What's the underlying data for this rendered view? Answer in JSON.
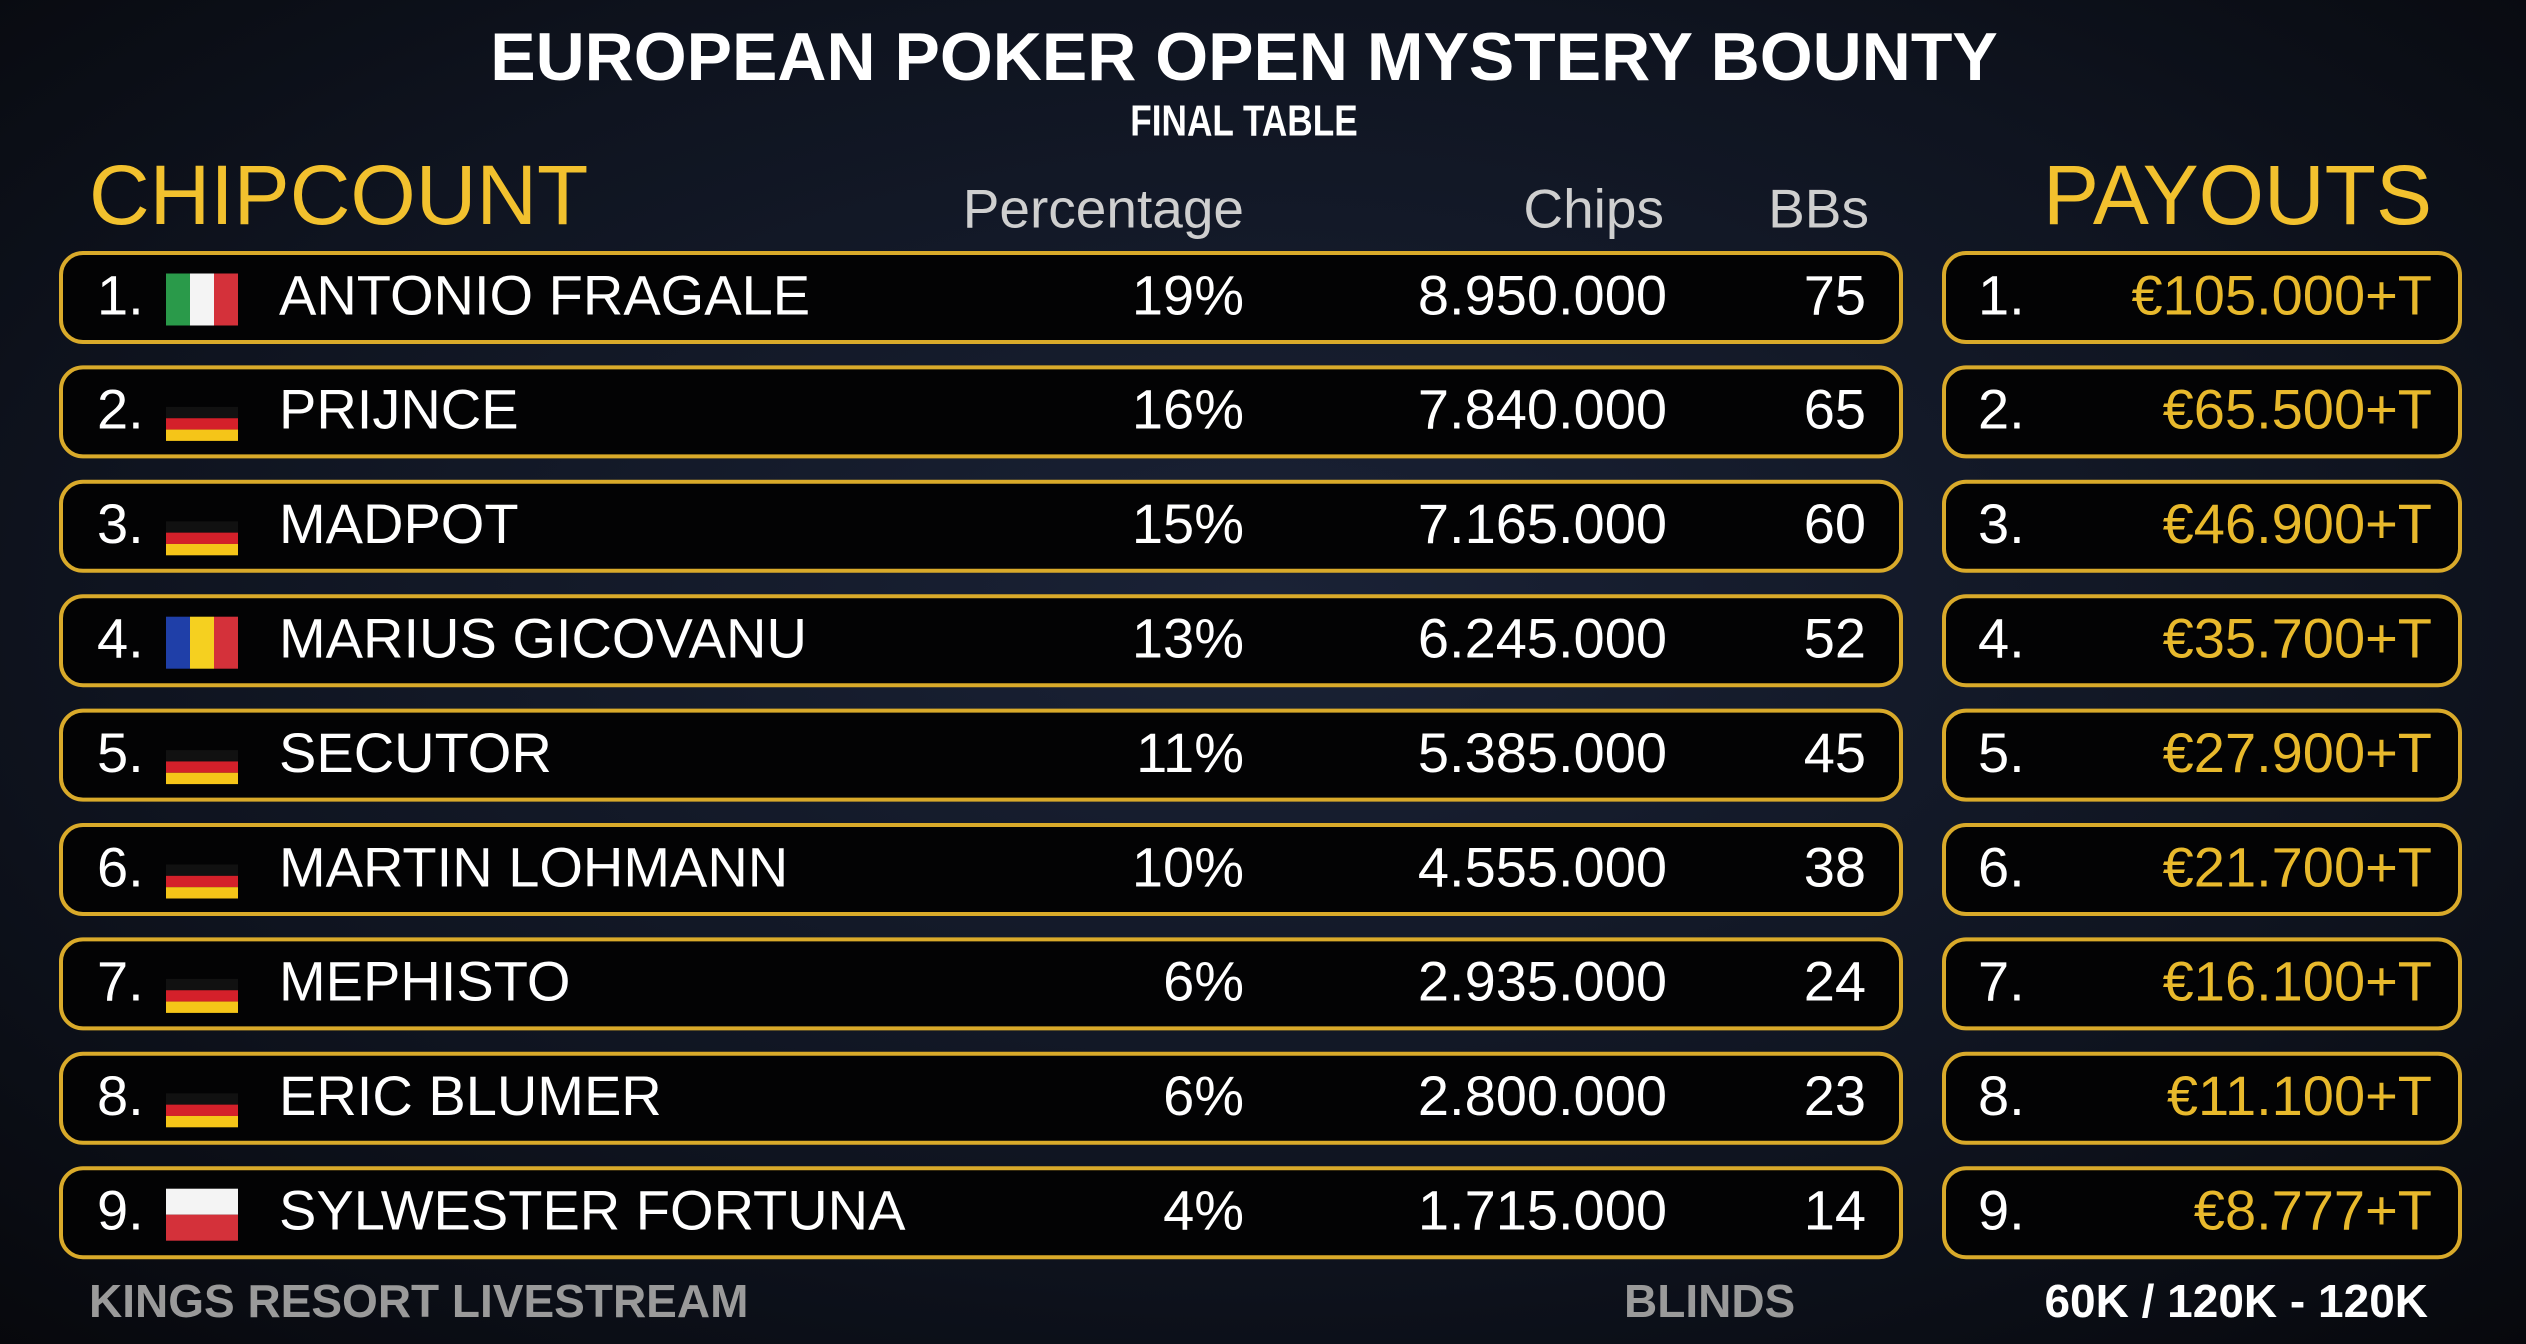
{
  "header": {
    "title": "EUROPEAN POKER OPEN MYSTERY BOUNTY",
    "subtitle": "FINAL TABLE"
  },
  "chipcount": {
    "title": "CHIPCOUNT",
    "columns": {
      "percentage": "Percentage",
      "chips": "Chips",
      "bbs": "BBs"
    },
    "rows": [
      {
        "rank": "1.",
        "name": "ANTONIO FRAGALE",
        "percentage": "19%",
        "chips": "8.950.000",
        "bbs": 75
      },
      {
        "rank": "2.",
        "name": "PRIJNCE",
        "percentage": "16%",
        "chips": "7.840.000",
        "bbs": 65
      },
      {
        "rank": "3.",
        "name": "MADPOT",
        "percentage": "15%",
        "chips": "7.165.000",
        "bbs": 60
      },
      {
        "rank": "4.",
        "name": "MARIUS GICOVANU",
        "percentage": "13%",
        "chips": "6.245.000",
        "bbs": 52
      },
      {
        "rank": "5.",
        "name": "SECUTOR",
        "percentage": "11%",
        "chips": "5.385.000",
        "bbs": 45
      },
      {
        "rank": "6.",
        "name": "MARTIN LOHMANN",
        "percentage": "10%",
        "chips": "4.555.000",
        "bbs": 38
      },
      {
        "rank": "7.",
        "name": "MEPHISTO",
        "percentage": "6%",
        "chips": "2.935.000",
        "bbs": 24
      },
      {
        "rank": "8.",
        "name": "ERIC BLUMER",
        "percentage": "6%",
        "chips": "2.800.000",
        "bbs": 23
      },
      {
        "rank": "9.",
        "name": "SYLWESTER FORTUNA",
        "percentage": "4%",
        "chips": "1.715.000",
        "bbs": 14
      }
    ]
  },
  "payouts": {
    "title": "PAYOUTS",
    "rows": [
      {
        "rank": "1.",
        "amount": "€105.000+T"
      },
      {
        "rank": "2.",
        "amount": "€65.500+T"
      },
      {
        "rank": "3.",
        "amount": "€46.900+T"
      },
      {
        "rank": "4.",
        "amount": "€35.700+T"
      },
      {
        "rank": "5.",
        "amount": "€27.900+T"
      },
      {
        "rank": "6.",
        "amount": "€21.700+T"
      },
      {
        "rank": "7.",
        "amount": "€16.100+T"
      },
      {
        "rank": "8.",
        "amount": "€11.100+T"
      },
      {
        "rank": "9.",
        "amount": "€8.777+T"
      }
    ]
  },
  "footer": {
    "source": "KINGS RESORT LIVESTREAM",
    "blinds_label": "BLINDS",
    "blinds": "60K / 120K - 120K"
  }
}
